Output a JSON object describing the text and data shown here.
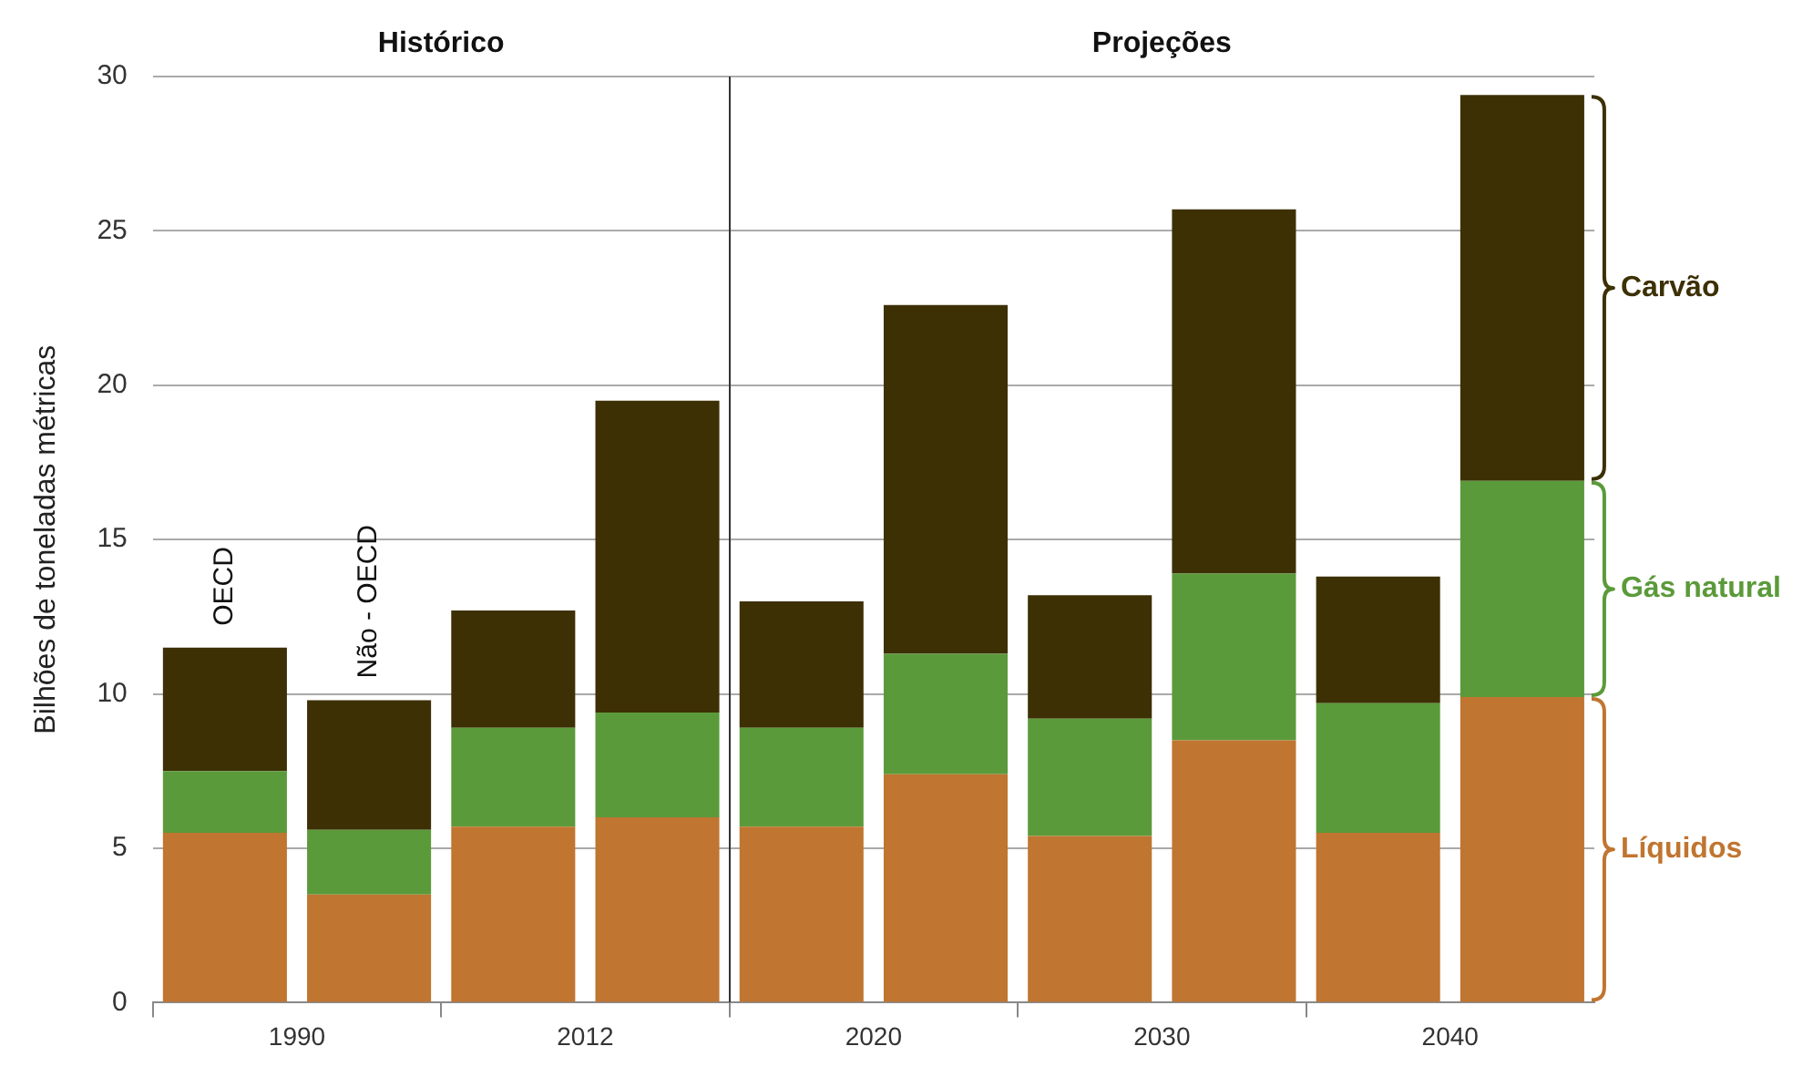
{
  "chart_data": {
    "type": "bar",
    "stacked": true,
    "ylabel": "Bilhões de toneladas métricas",
    "categories": [
      "1990",
      null,
      "2012",
      null,
      "2020",
      null,
      "2030",
      null,
      "2040",
      null
    ],
    "series": [
      {
        "name": "Líquidos",
        "color": "#c07530",
        "values": [
          5.5,
          3.5,
          5.7,
          6.0,
          5.7,
          7.4,
          5.4,
          8.5,
          5.5,
          9.9
        ]
      },
      {
        "name": "Gás natural",
        "color": "#5b9a3a",
        "values": [
          2.0,
          2.1,
          3.2,
          3.4,
          3.2,
          3.9,
          3.8,
          5.4,
          4.2,
          7.0
        ]
      },
      {
        "name": "Carvão",
        "color": "#3d3005",
        "values": [
          4.0,
          4.2,
          3.8,
          10.1,
          4.1,
          11.3,
          4.0,
          11.8,
          4.1,
          12.5
        ]
      }
    ],
    "ylim": [
      0,
      30
    ],
    "yticks": [
      0,
      5,
      10,
      15,
      20,
      25,
      30
    ],
    "grid": "y",
    "legend": false,
    "annotations": [
      "OECD",
      "Não - OECD",
      "Histórico",
      "Projeções"
    ]
  }
}
